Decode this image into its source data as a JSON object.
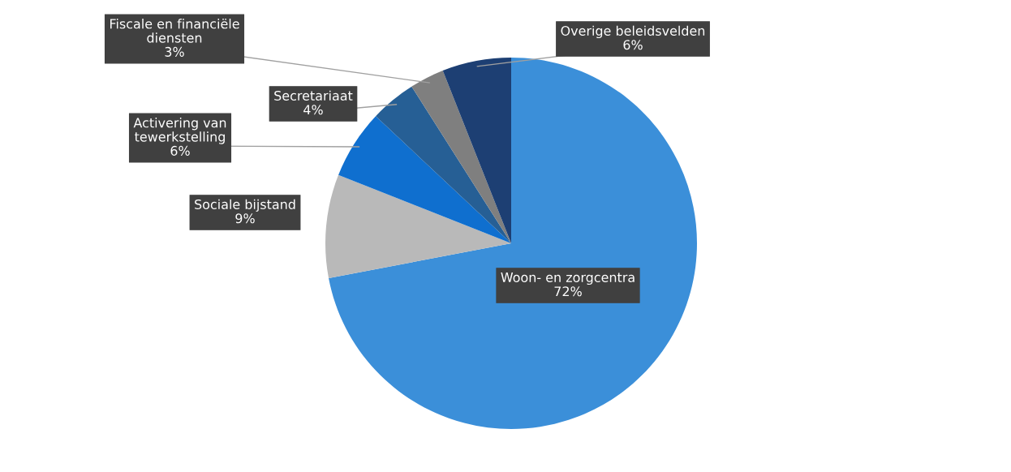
{
  "chart_data": {
    "type": "pie",
    "categories": [
      "Woon- en zorgcentra",
      "Sociale bijstand",
      "Activering van\ntewerkstelling",
      "Secretariaat",
      "Fiscale en financiële\ndiensten",
      "Overige beleidsvelden"
    ],
    "values": [
      72,
      9,
      6,
      4,
      3,
      6
    ],
    "colors": [
      "#3b8fd9",
      "#b9b9b9",
      "#0f6fcf",
      "#265f95",
      "#7f7f7f",
      "#1d3f73"
    ],
    "value_labels": [
      "72%",
      "9%",
      "6%",
      "4%",
      "3%",
      "6%"
    ]
  }
}
